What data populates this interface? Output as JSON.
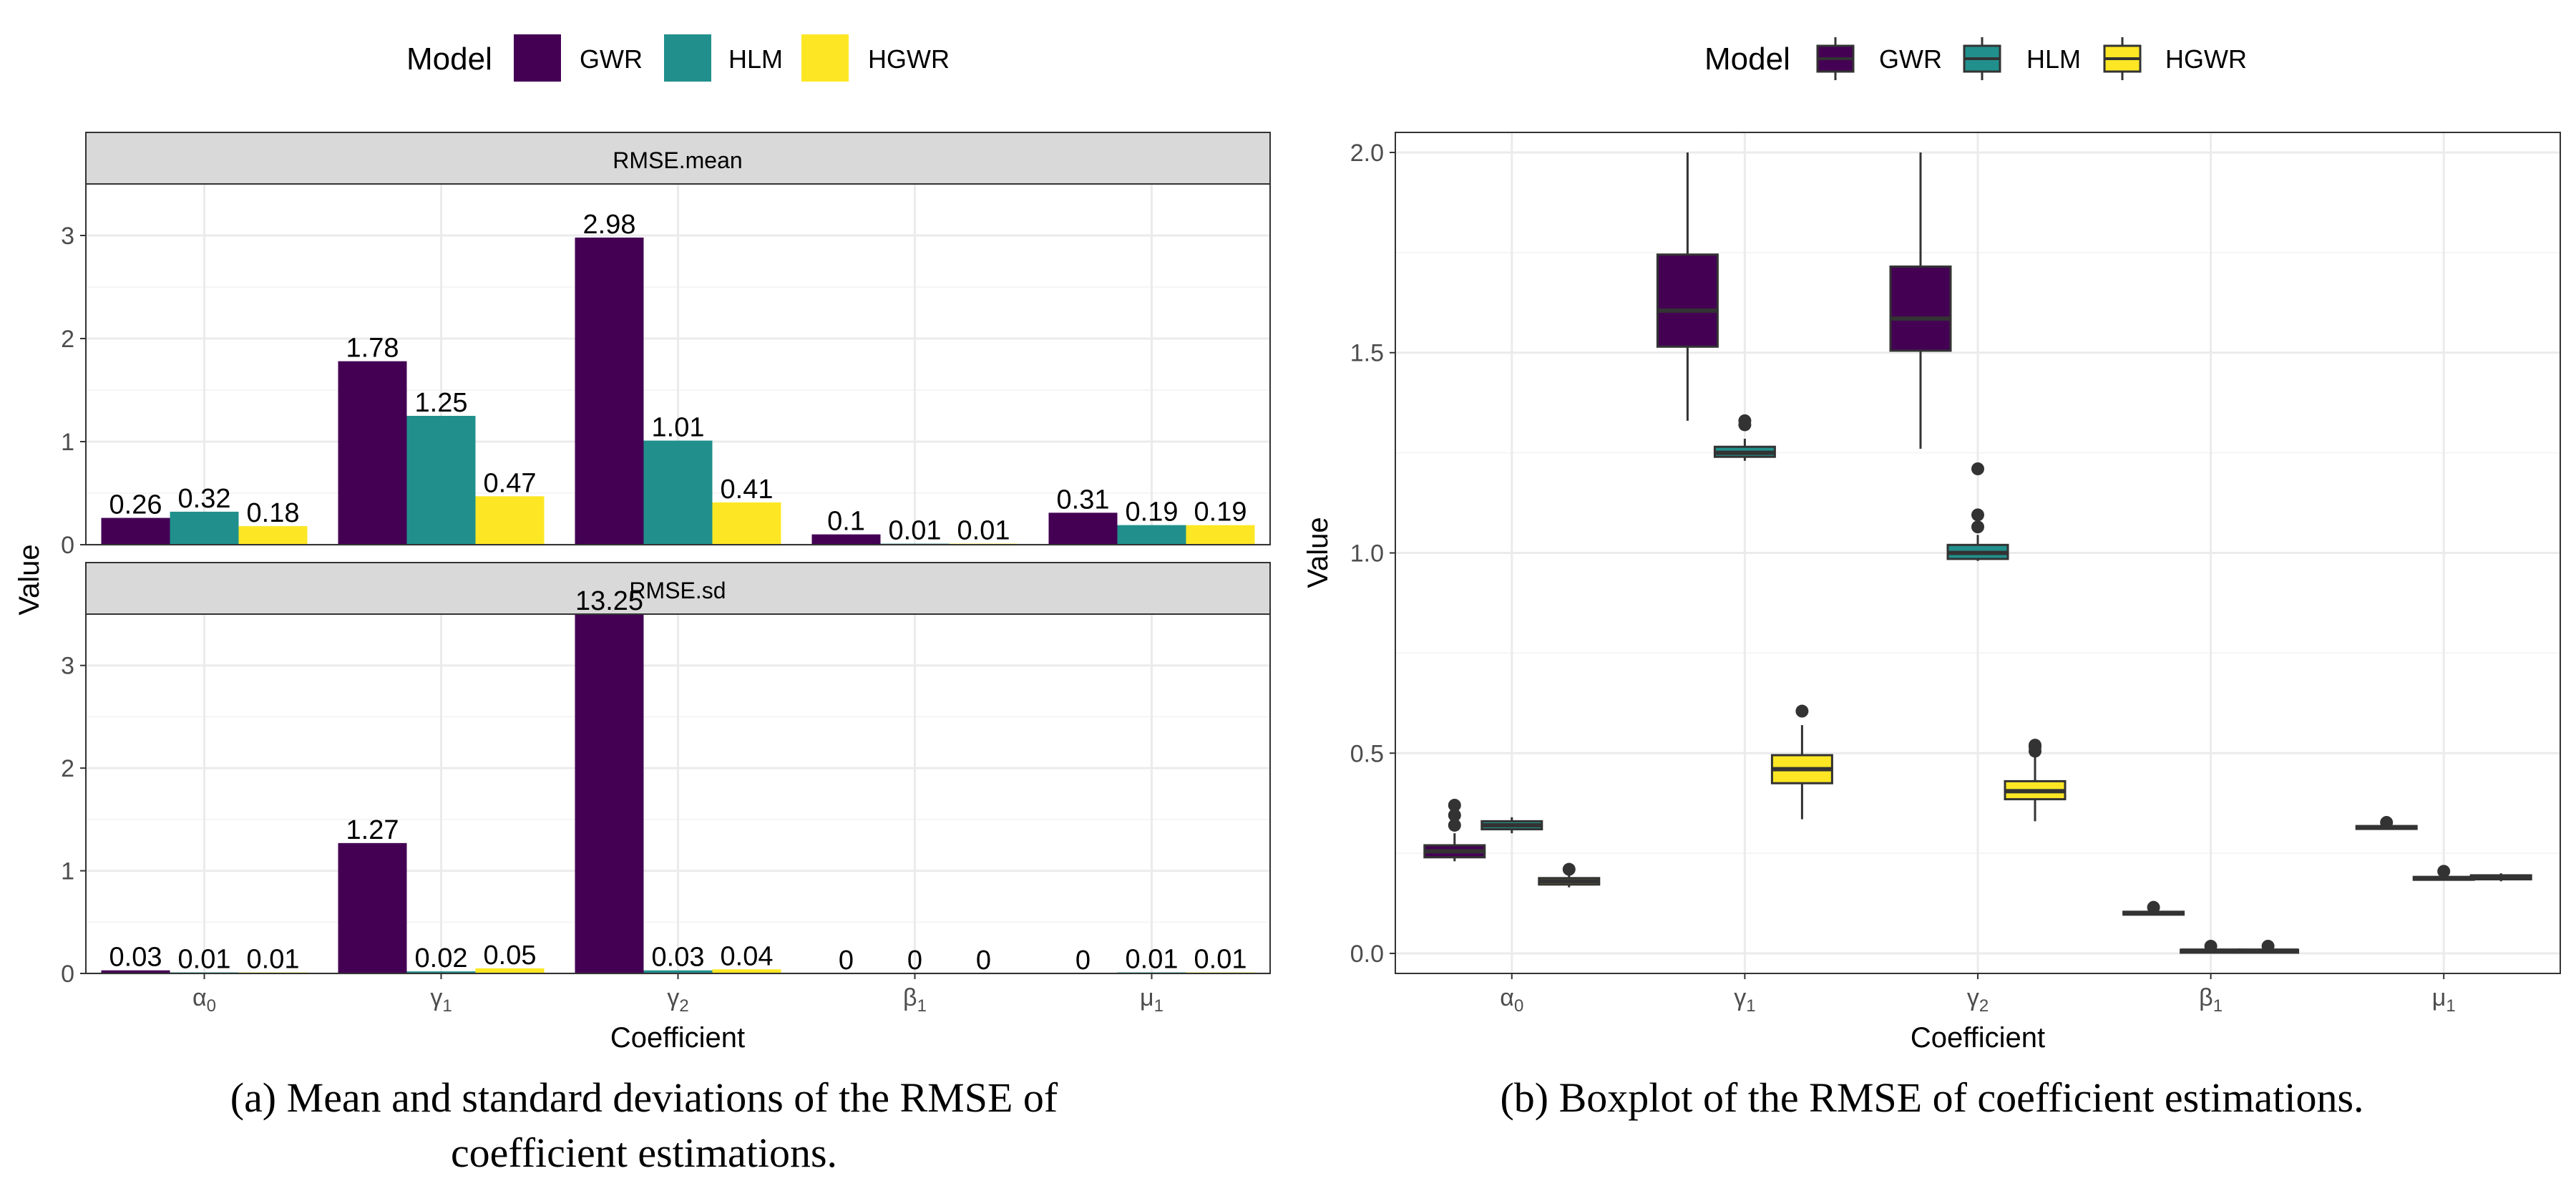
{
  "colors": {
    "GWR": "#440154",
    "HLM": "#21908C",
    "HGWR": "#FDE725",
    "strip_bg": "#D9D9D9",
    "grid_major": "#EBEBEB",
    "grid_minor": "#F5F5F5",
    "box_line": "#333333"
  },
  "chart_data": [
    {
      "type": "bar",
      "panel": "a",
      "legend_title": "Model",
      "legend": [
        "GWR",
        "HLM",
        "HGWR"
      ],
      "xlabel": "Coefficient",
      "ylabel": "Value",
      "categories": [
        "α0",
        "γ1",
        "γ2",
        "β1",
        "μ1"
      ],
      "category_labels": [
        {
          "base": "α",
          "sub": "0"
        },
        {
          "base": "γ",
          "sub": "1"
        },
        {
          "base": "γ",
          "sub": "2"
        },
        {
          "base": "β",
          "sub": "1"
        },
        {
          "base": "μ",
          "sub": "1"
        }
      ],
      "ylim": [
        0,
        3.5
      ],
      "yticks": [
        0,
        1,
        2,
        3
      ],
      "caption_line1": "(a) Mean and standard deviations of the RMSE of",
      "caption_line2": "coefficient estimations.",
      "facets": [
        {
          "strip": "RMSE.mean",
          "series": [
            {
              "name": "GWR",
              "values": [
                0.26,
                1.78,
                2.98,
                0.1,
                0.31
              ],
              "labels": [
                "0.26",
                "1.78",
                "2.98",
                "0.1",
                "0.31"
              ]
            },
            {
              "name": "HLM",
              "values": [
                0.32,
                1.25,
                1.01,
                0.01,
                0.19
              ],
              "labels": [
                "0.32",
                "1.25",
                "1.01",
                "0.01",
                "0.19"
              ]
            },
            {
              "name": "HGWR",
              "values": [
                0.18,
                0.47,
                0.41,
                0.01,
                0.19
              ],
              "labels": [
                "0.18",
                "0.47",
                "0.41",
                "0.01",
                "0.19"
              ]
            }
          ]
        },
        {
          "strip": "RMSE.sd",
          "series": [
            {
              "name": "GWR",
              "values": [
                0.03,
                1.27,
                13.25,
                0,
                0
              ],
              "labels": [
                "0.03",
                "1.27",
                "13.25",
                "0",
                "0"
              ]
            },
            {
              "name": "HLM",
              "values": [
                0.01,
                0.02,
                0.03,
                0,
                0.01
              ],
              "labels": [
                "0.01",
                "0.02",
                "0.03",
                "0",
                "0.01"
              ]
            },
            {
              "name": "HGWR",
              "values": [
                0.01,
                0.05,
                0.04,
                0,
                0.01
              ],
              "labels": [
                "0.01",
                "0.05",
                "0.04",
                "0",
                "0.01"
              ]
            }
          ]
        }
      ]
    },
    {
      "type": "boxplot",
      "panel": "b",
      "legend_title": "Model",
      "legend": [
        "GWR",
        "HLM",
        "HGWR"
      ],
      "xlabel": "Coefficient",
      "ylabel": "Value",
      "categories": [
        "α0",
        "γ1",
        "γ2",
        "β1",
        "μ1"
      ],
      "ylim": [
        -0.05,
        2.05
      ],
      "yticks": [
        0.0,
        0.5,
        1.0,
        1.5,
        2.0
      ],
      "ytick_labels": [
        "0.0",
        "0.5",
        "1.0",
        "1.5",
        "2.0"
      ],
      "caption": "(b) Boxplot of the RMSE of coefficient estimations.",
      "boxes": [
        {
          "cat": 0,
          "series": "GWR",
          "lw": 0.23,
          "q1": 0.24,
          "med": 0.255,
          "q3": 0.27,
          "uw": 0.3,
          "outliers": [
            0.32,
            0.345,
            0.37
          ]
        },
        {
          "cat": 0,
          "series": "HLM",
          "lw": 0.3,
          "q1": 0.31,
          "med": 0.32,
          "q3": 0.33,
          "uw": 0.34,
          "outliers": []
        },
        {
          "cat": 0,
          "series": "HGWR",
          "lw": 0.165,
          "q1": 0.172,
          "med": 0.18,
          "q3": 0.188,
          "uw": 0.197,
          "outliers": [
            0.21
          ]
        },
        {
          "cat": 1,
          "series": "GWR",
          "lw": 1.33,
          "q1": 1.515,
          "med": 1.605,
          "q3": 1.745,
          "uw": 2.0,
          "outliers": []
        },
        {
          "cat": 1,
          "series": "HLM",
          "lw": 1.23,
          "q1": 1.24,
          "med": 1.25,
          "q3": 1.265,
          "uw": 1.285,
          "outliers": [
            1.32,
            1.33
          ]
        },
        {
          "cat": 1,
          "series": "HGWR",
          "lw": 0.335,
          "q1": 0.425,
          "med": 0.46,
          "q3": 0.495,
          "uw": 0.57,
          "outliers": [
            0.605
          ]
        },
        {
          "cat": 2,
          "series": "GWR",
          "lw": 1.26,
          "q1": 1.505,
          "med": 1.585,
          "q3": 1.715,
          "uw": 2.0,
          "outliers": []
        },
        {
          "cat": 2,
          "series": "HLM",
          "lw": 0.98,
          "q1": 0.985,
          "med": 1.0,
          "q3": 1.02,
          "uw": 1.045,
          "outliers": [
            1.065,
            1.095,
            1.21
          ]
        },
        {
          "cat": 2,
          "series": "HGWR",
          "lw": 0.33,
          "q1": 0.385,
          "med": 0.405,
          "q3": 0.43,
          "uw": 0.49,
          "outliers": [
            0.505,
            0.515,
            0.52
          ]
        },
        {
          "cat": 3,
          "series": "GWR",
          "lw": 0.095,
          "q1": 0.098,
          "med": 0.1,
          "q3": 0.104,
          "uw": 0.107,
          "outliers": [
            0.115
          ]
        },
        {
          "cat": 3,
          "series": "HLM",
          "lw": 0.004,
          "q1": 0.005,
          "med": 0.007,
          "q3": 0.009,
          "uw": 0.012,
          "outliers": [
            0.018
          ]
        },
        {
          "cat": 3,
          "series": "HGWR",
          "lw": 0.004,
          "q1": 0.005,
          "med": 0.007,
          "q3": 0.009,
          "uw": 0.012,
          "outliers": [
            0.018
          ]
        },
        {
          "cat": 4,
          "series": "GWR",
          "lw": 0.31,
          "q1": 0.312,
          "med": 0.315,
          "q3": 0.318,
          "uw": 0.32,
          "outliers": [
            0.327
          ]
        },
        {
          "cat": 4,
          "series": "HLM",
          "lw": 0.182,
          "q1": 0.185,
          "med": 0.188,
          "q3": 0.191,
          "uw": 0.195,
          "outliers": [
            0.205
          ]
        },
        {
          "cat": 4,
          "series": "HGWR",
          "lw": 0.18,
          "q1": 0.185,
          "med": 0.19,
          "q3": 0.195,
          "uw": 0.2,
          "outliers": []
        }
      ]
    }
  ]
}
